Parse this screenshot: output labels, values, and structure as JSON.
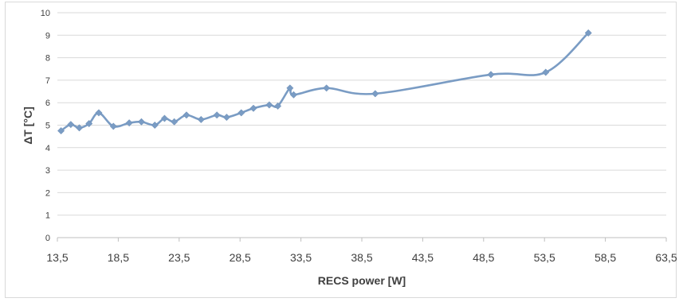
{
  "chart_data": {
    "type": "line",
    "title": "",
    "xlabel": "RECS power [W]",
    "ylabel": "ΔT [°C]",
    "xlim": [
      13.5,
      63.5
    ],
    "ylim": [
      0,
      10
    ],
    "grid": "horizontal",
    "smoothed": true,
    "marker": "diamond",
    "x_ticks": [
      "13,5",
      "18,5",
      "23,5",
      "28,5",
      "33,5",
      "38,5",
      "43,5",
      "48,5",
      "53,5",
      "58,5",
      "63,5"
    ],
    "y_ticks": [
      "0",
      "1",
      "2",
      "3",
      "4",
      "5",
      "6",
      "7",
      "8",
      "9",
      "10"
    ],
    "series": [
      {
        "color": "#7a9cc4",
        "points": [
          [
            13.8,
            4.75
          ],
          [
            14.6,
            5.03
          ],
          [
            15.3,
            4.88
          ],
          [
            16.1,
            5.07
          ],
          [
            16.9,
            5.55
          ],
          [
            18.1,
            4.95
          ],
          [
            19.4,
            5.1
          ],
          [
            20.4,
            5.15
          ],
          [
            21.5,
            5.0
          ],
          [
            22.3,
            5.3
          ],
          [
            23.1,
            5.15
          ],
          [
            24.1,
            5.45
          ],
          [
            25.3,
            5.25
          ],
          [
            26.6,
            5.45
          ],
          [
            27.4,
            5.35
          ],
          [
            28.6,
            5.55
          ],
          [
            29.6,
            5.75
          ],
          [
            30.9,
            5.9
          ],
          [
            31.6,
            5.85
          ],
          [
            32.6,
            6.65
          ],
          [
            32.9,
            6.35
          ],
          [
            35.6,
            6.65
          ],
          [
            39.6,
            6.4
          ],
          [
            49.1,
            7.25
          ],
          [
            53.6,
            7.35
          ],
          [
            57.1,
            9.1
          ]
        ]
      }
    ]
  }
}
